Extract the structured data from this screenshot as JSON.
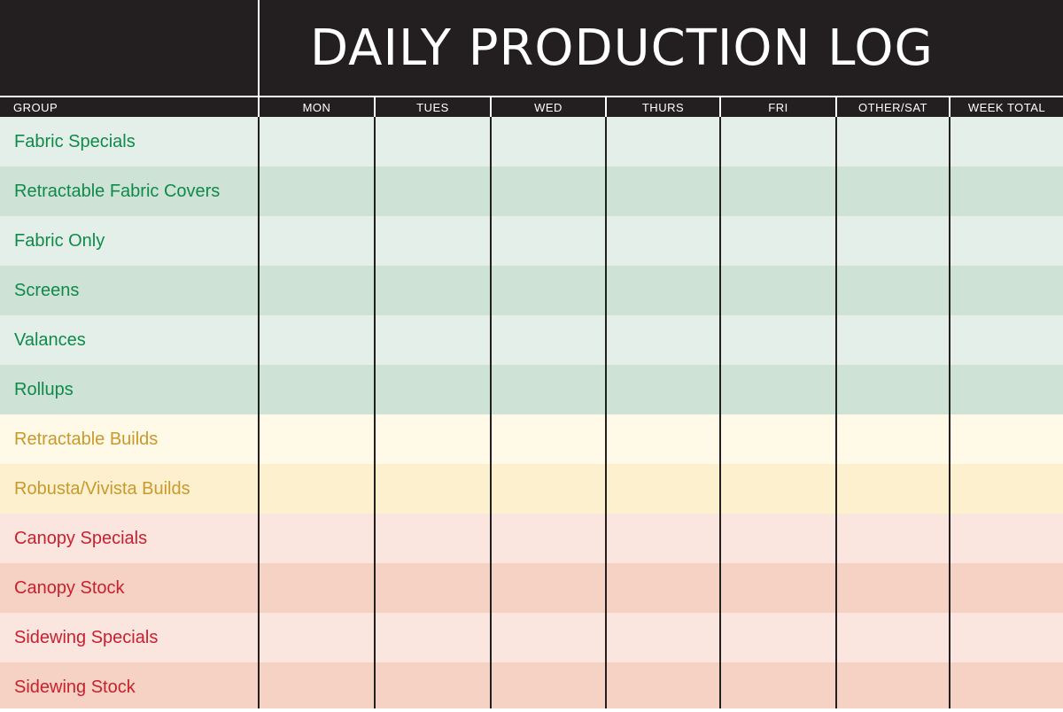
{
  "title": "DAILY PRODUCTION LOG",
  "columns": {
    "group": "GROUP",
    "days": [
      "MON",
      "TUES",
      "WED",
      "THURS",
      "FRI",
      "OTHER/SAT",
      "WEEK TOTAL"
    ]
  },
  "rows": [
    {
      "label": "Fabric Specials",
      "color": "#0e8a4a",
      "bg": "#e4efe9"
    },
    {
      "label": "Retractable Fabric Covers",
      "color": "#0e8a4a",
      "bg": "#cfe2d6"
    },
    {
      "label": "Fabric Only",
      "color": "#0e8a4a",
      "bg": "#e4efe9"
    },
    {
      "label": "Screens",
      "color": "#0e8a4a",
      "bg": "#cfe2d6"
    },
    {
      "label": "Valances",
      "color": "#0e8a4a",
      "bg": "#e4efe9"
    },
    {
      "label": "Rollups",
      "color": "#0e8a4a",
      "bg": "#cfe2d6"
    },
    {
      "label": "Retractable Builds",
      "color": "#c9992b",
      "bg": "#fff9e8"
    },
    {
      "label": "Robusta/Vivista Builds",
      "color": "#c9992b",
      "bg": "#fdf0cf"
    },
    {
      "label": "Canopy Specials",
      "color": "#c8202e",
      "bg": "#fbe5df"
    },
    {
      "label": "Canopy Stock",
      "color": "#c8202e",
      "bg": "#f5d2c4"
    },
    {
      "label": "Sidewing Specials",
      "color": "#c8202e",
      "bg": "#fbe5df"
    },
    {
      "label": "Sidewing Stock",
      "color": "#c8202e",
      "bg": "#f5d2c4"
    }
  ]
}
